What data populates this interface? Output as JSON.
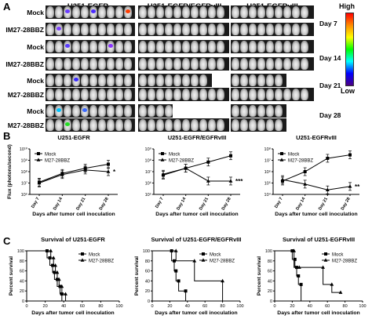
{
  "panel_a": {
    "letter": "A",
    "columns": [
      "U251-EGFR",
      "U251-EGFR/EGFRvIII",
      "U251-EGFRvIII"
    ],
    "rows": [
      "Mock",
      "IM27-28BBZ",
      "Mock",
      "IM27-28BBZ",
      "Mock",
      "M27-28BBZ",
      "Mock",
      "M27-28BBZ"
    ],
    "days": [
      "Day 7",
      "Day 14",
      "Day 21",
      "Day 28"
    ],
    "scale_high": "High",
    "scale_low": "Low"
  },
  "panel_b": {
    "letter": "B"
  },
  "panel_c": {
    "letter": "C"
  },
  "chart_data": [
    {
      "type": "line",
      "panel": "B",
      "title": "U251-EGFR",
      "xlabel": "Days after tumor cell inoculation",
      "ylabel": "Flux (photons/second)",
      "categories": [
        "Day 7",
        "Day 14",
        "Day 21",
        "Day 28"
      ],
      "yscale": "log",
      "ylim": [
        1000000,
        10000000000
      ],
      "yticks": [
        "10⁶",
        "10⁷",
        "10⁸",
        "10⁹",
        "10¹⁰"
      ],
      "annotation": "*",
      "legend": "top-left",
      "series": [
        {
          "name": "Mock",
          "marker": "square",
          "values": [
            12000000,
            70000000,
            200000000,
            450000000
          ]
        },
        {
          "name": "M27-28BBZ",
          "marker": "triangle",
          "values": [
            10000000,
            55000000,
            140000000,
            100000000
          ]
        }
      ]
    },
    {
      "type": "line",
      "panel": "B",
      "title": "U251-EGFR/EGFRvIII",
      "xlabel": "Days after tumor cell inoculation",
      "ylabel": "",
      "categories": [
        "Day 7",
        "Day 14",
        "Day 21",
        "Day 28"
      ],
      "yscale": "log",
      "ylim": [
        100000,
        1000000000
      ],
      "yticks": [
        "10⁵",
        "10⁶",
        "10⁷",
        "10⁸",
        "10⁹"
      ],
      "annotation": "***",
      "legend": "top-left",
      "series": [
        {
          "name": "Mock",
          "marker": "square",
          "values": [
            5000000,
            20000000,
            70000000,
            250000000
          ]
        },
        {
          "name": "M27-28BBZ",
          "marker": "triangle",
          "values": [
            6000000,
            20000000,
            1500000,
            1500000
          ]
        }
      ]
    },
    {
      "type": "line",
      "panel": "B",
      "title": "U251-EGFRvIII",
      "xlabel": "Days after tumor cell inoculation",
      "ylabel": "",
      "categories": [
        "Day 7",
        "Day 14",
        "Day 21",
        "Day 28"
      ],
      "yscale": "log",
      "ylim": [
        10000,
        100000000
      ],
      "yticks": [
        "10⁴",
        "10⁵",
        "10⁶",
        "10⁷",
        "10⁸"
      ],
      "annotation": "**",
      "legend": "top-left",
      "series": [
        {
          "name": "Mock",
          "marker": "square",
          "values": [
            150000,
            1000000,
            15000000,
            30000000
          ]
        },
        {
          "name": "M27-28BBZ",
          "marker": "triangle",
          "values": [
            200000,
            80000,
            25000,
            50000
          ]
        }
      ]
    },
    {
      "type": "line",
      "panel": "C",
      "title": "Survival of U251-EGFR",
      "xlabel": "Days after tumor cell inoculation",
      "ylabel": "Percent survival",
      "xlim": [
        0,
        100
      ],
      "ylim": [
        0,
        100
      ],
      "xticks": [
        0,
        20,
        40,
        60,
        80,
        100
      ],
      "yticks": [
        0,
        20,
        40,
        60,
        80,
        100
      ],
      "step": true,
      "legend": "top-right",
      "series": [
        {
          "name": "Mock",
          "marker": "square",
          "x": [
            0,
            22,
            25,
            28,
            30,
            33,
            36,
            38
          ],
          "y": [
            100,
            86,
            71,
            57,
            43,
            29,
            14,
            0
          ]
        },
        {
          "name": "M27-28BBZ",
          "marker": "triangle",
          "x": [
            0,
            26,
            29,
            31,
            33,
            35,
            38,
            42
          ],
          "y": [
            100,
            86,
            71,
            57,
            43,
            29,
            14,
            0
          ]
        }
      ]
    },
    {
      "type": "line",
      "panel": "C",
      "title": "Survival of U251-EGFR/EGFRvIII",
      "xlabel": "Days after tumor cell inoculation",
      "ylabel": "Percent survival",
      "xlim": [
        0,
        100
      ],
      "ylim": [
        0,
        100
      ],
      "xticks": [
        0,
        20,
        40,
        60,
        80,
        100
      ],
      "yticks": [
        0,
        20,
        40,
        60,
        80,
        100
      ],
      "step": true,
      "legend": "top-right",
      "series": [
        {
          "name": "Mock",
          "marker": "square",
          "x": [
            0,
            22,
            25,
            27,
            30,
            38
          ],
          "y": [
            100,
            80,
            60,
            40,
            20,
            0
          ]
        },
        {
          "name": "M27-28BBZ",
          "marker": "triangle",
          "x": [
            0,
            27,
            48,
            80
          ],
          "y": [
            100,
            80,
            40,
            0
          ]
        }
      ]
    },
    {
      "type": "line",
      "panel": "C",
      "title": "Survival of U251-EGFRvIII",
      "xlabel": "Days after tumor cell inoculation",
      "ylabel": "Percent survival",
      "xlim": [
        0,
        100
      ],
      "ylim": [
        0,
        100
      ],
      "xticks": [
        0,
        20,
        40,
        60,
        80,
        100
      ],
      "yticks": [
        0,
        20,
        40,
        60,
        80,
        100
      ],
      "step": true,
      "legend": "top-right",
      "series": [
        {
          "name": "Mock",
          "marker": "square",
          "x": [
            0,
            20,
            23,
            25,
            27,
            30
          ],
          "y": [
            100,
            83,
            67,
            50,
            33,
            0
          ]
        },
        {
          "name": "M27-28BBZ",
          "marker": "triangle",
          "x": [
            0,
            22,
            28,
            55,
            65,
            75
          ],
          "y": [
            100,
            67,
            67,
            33,
            17,
            17
          ]
        }
      ]
    }
  ]
}
